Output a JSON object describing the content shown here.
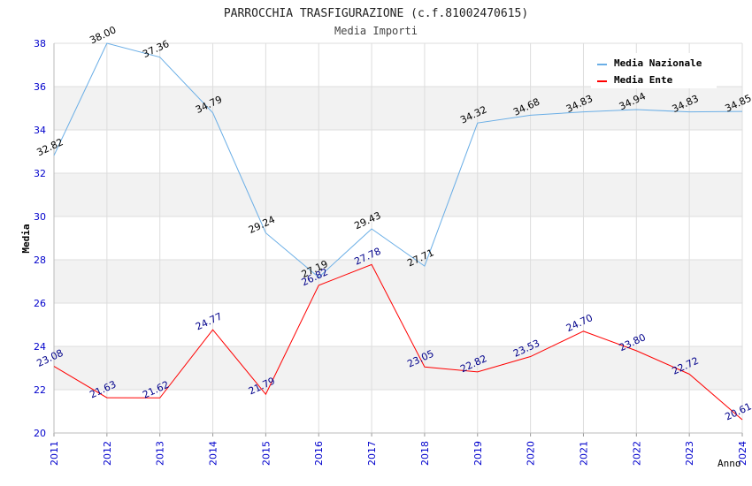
{
  "chart_data": {
    "type": "line",
    "title": "PARROCCHIA TRASFIGURAZIONE (c.f.81002470615)",
    "subtitle": "Media Importi",
    "xlabel": "Anno",
    "ylabel": "Media",
    "ylim": [
      20,
      38
    ],
    "yticks": [
      "20",
      "22",
      "24",
      "26",
      "28",
      "30",
      "32",
      "34",
      "36",
      "38"
    ],
    "categories": [
      "2011",
      "2012",
      "2013",
      "2014",
      "2015",
      "2016",
      "2017",
      "2018",
      "2019",
      "2020",
      "2021",
      "2022",
      "2023",
      "2024"
    ],
    "grid": true,
    "legend_position": "top-right",
    "series": [
      {
        "name": "Media Nazionale",
        "color": "#6aaee6",
        "label_color": "#000000",
        "values": [
          32.82,
          38.0,
          37.36,
          34.79,
          29.24,
          27.19,
          29.43,
          27.71,
          34.32,
          34.68,
          34.83,
          34.94,
          34.83,
          34.85
        ],
        "labels": [
          "32.82",
          "38.00",
          "37.36",
          "34.79",
          "29.24",
          "27.19",
          "29.43",
          "27.71",
          "34.32",
          "34.68",
          "34.83",
          "34.94",
          "34.83",
          "34.85"
        ]
      },
      {
        "name": "Media Ente",
        "color": "#ff0000",
        "label_color": "#00008b",
        "values": [
          23.08,
          21.63,
          21.62,
          24.77,
          21.79,
          26.82,
          27.78,
          23.05,
          22.82,
          23.53,
          24.7,
          23.8,
          22.72,
          20.61
        ],
        "labels": [
          "23.08",
          "21.63",
          "21.62",
          "24.77",
          "21.79",
          "26.82",
          "27.78",
          "23.05",
          "22.82",
          "23.53",
          "24.70",
          "23.80",
          "22.72",
          "20.61"
        ]
      }
    ],
    "colors": {
      "band": "#f2f2f2",
      "grid": "#dddddd",
      "axis_tick_text": "#0000cc",
      "title_text": "#222222"
    }
  }
}
